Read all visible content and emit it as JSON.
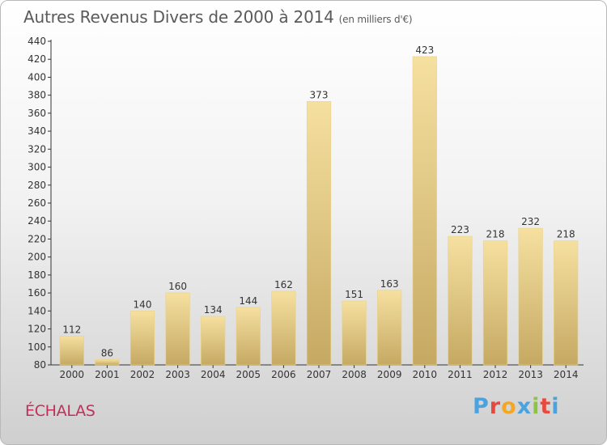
{
  "header": {
    "title": "Autres Revenus Divers de 2000 à 2014",
    "unit": "(en milliers d'€)"
  },
  "footer": {
    "place": "ÉCHALAS",
    "logo_letters": [
      "P",
      "r",
      "o",
      "x",
      "i",
      "t",
      "i"
    ],
    "logo_colors": [
      "#4aa3df",
      "#e7493d",
      "#f5a623",
      "#4aa3df",
      "#8cc63f",
      "#e7493d",
      "#4aa3df"
    ]
  },
  "chart_data": {
    "type": "bar",
    "title": "Autres Revenus Divers de 2000 à 2014",
    "subtitle": "(en milliers d'€)",
    "categories": [
      "2000",
      "2001",
      "2002",
      "2003",
      "2004",
      "2005",
      "2006",
      "2007",
      "2008",
      "2009",
      "2010",
      "2011",
      "2012",
      "2013",
      "2014"
    ],
    "values": [
      112,
      86,
      140,
      160,
      134,
      144,
      162,
      373,
      151,
      163,
      423,
      223,
      218,
      232,
      218
    ],
    "ylim": [
      80,
      440
    ],
    "yticks": [
      80,
      100,
      120,
      140,
      160,
      180,
      200,
      220,
      240,
      260,
      280,
      300,
      320,
      340,
      360,
      380,
      400,
      420,
      440
    ],
    "grid": false,
    "bar_color": "#f2d890",
    "bar_color_dark": "#c8ad64"
  }
}
